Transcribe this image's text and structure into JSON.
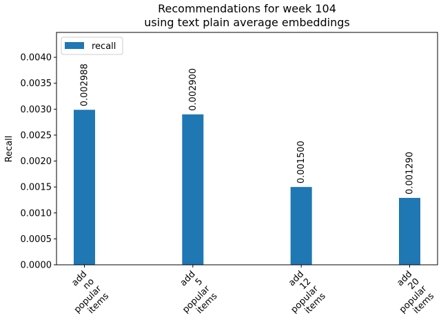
{
  "chart_data": {
    "type": "bar",
    "title": [
      "Recommendations for week 104",
      "using text plain average embeddings"
    ],
    "ylabel": "Recall",
    "xlabel": "",
    "categories": [
      [
        "add",
        "no",
        "popular",
        "items"
      ],
      [
        "add",
        "5",
        "popular",
        "items"
      ],
      [
        "add",
        "12",
        "popular",
        "items"
      ],
      [
        "add",
        "20",
        "popular",
        "items"
      ]
    ],
    "series": [
      {
        "name": "recall",
        "values": [
          0.002988,
          0.0029,
          0.0015,
          0.00129
        ],
        "color": "#1f77b4"
      }
    ],
    "data_labels": [
      "0.002988",
      "0.002900",
      "0.001500",
      "0.001290"
    ],
    "yticks": [
      "0.0000",
      "0.0005",
      "0.0010",
      "0.0015",
      "0.0020",
      "0.0025",
      "0.0030",
      "0.0035",
      "0.0040"
    ],
    "ytick_values": [
      0,
      0.0005,
      0.001,
      0.0015,
      0.002,
      0.0025,
      0.003,
      0.0035,
      0.004
    ],
    "ylim": [
      0,
      0.00448
    ],
    "legend": "upper-left",
    "grid": false
  }
}
